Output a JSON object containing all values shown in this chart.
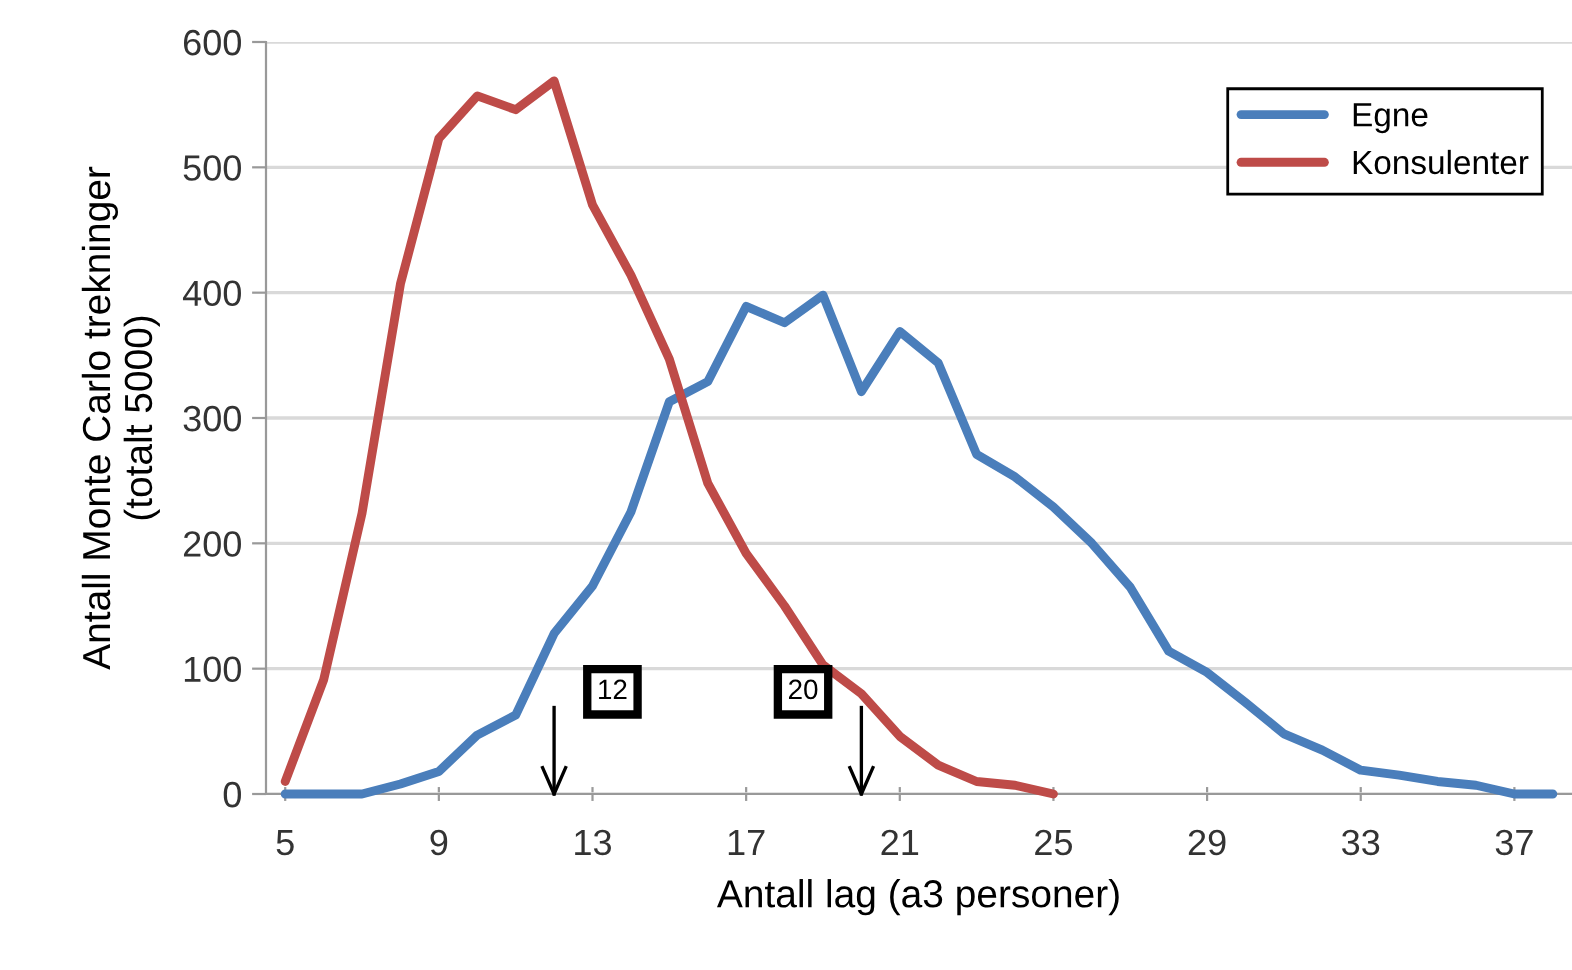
{
  "chart_data": {
    "type": "line",
    "xlabel": "Antall lag (a3 personer)",
    "ylabel": "Antall Monte Carlo trekninger\n(totalt 5000)",
    "x": [
      5,
      6,
      7,
      8,
      9,
      10,
      11,
      12,
      13,
      14,
      15,
      16,
      17,
      18,
      19,
      20,
      21,
      22,
      23,
      24,
      25,
      26,
      27,
      28,
      29,
      30,
      31,
      32,
      33,
      34,
      35,
      36,
      37,
      38
    ],
    "series": [
      {
        "name": "Egne",
        "color": "#4a7ebb",
        "values": [
          0,
          0,
          0,
          8,
          18,
          47,
          63,
          128,
          166,
          225,
          313,
          329,
          389,
          376,
          398,
          321,
          369,
          344,
          271,
          253,
          229,
          200,
          165,
          114,
          97,
          73,
          48,
          35,
          19,
          15,
          10,
          7,
          0,
          0
        ]
      },
      {
        "name": "Konsulenter",
        "color": "#be4b48",
        "values": [
          10,
          91,
          224,
          407,
          523,
          557,
          546,
          569,
          470,
          414,
          347,
          248,
          192,
          150,
          103,
          80,
          46,
          23,
          10,
          7,
          0,
          null,
          null,
          null,
          null,
          null,
          null,
          null,
          null,
          null,
          null,
          null,
          null,
          null
        ]
      }
    ],
    "xlim": [
      4.5,
      38.5
    ],
    "xticks": [
      5,
      9,
      13,
      17,
      21,
      25,
      29,
      33,
      37
    ],
    "ylim": [
      0,
      600
    ],
    "yticks": [
      0,
      100,
      200,
      300,
      400,
      500,
      600
    ],
    "grid": "y",
    "legend": "top right",
    "marker": "none",
    "line_style": "solid",
    "ref_lines": [
      {
        "axis": "x",
        "value": 12,
        "label": "12"
      },
      {
        "axis": "x",
        "value": 20,
        "label": "20"
      }
    ]
  }
}
